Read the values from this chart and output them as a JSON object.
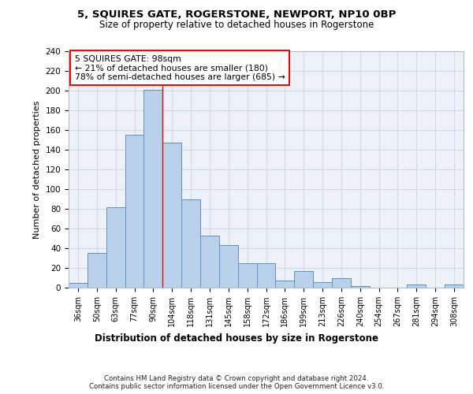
{
  "title1": "5, SQUIRES GATE, ROGERSTONE, NEWPORT, NP10 0BP",
  "title2": "Size of property relative to detached houses in Rogerstone",
  "xlabel": "Distribution of detached houses by size in Rogerstone",
  "ylabel": "Number of detached properties",
  "categories": [
    "36sqm",
    "50sqm",
    "63sqm",
    "77sqm",
    "90sqm",
    "104sqm",
    "118sqm",
    "131sqm",
    "145sqm",
    "158sqm",
    "172sqm",
    "186sqm",
    "199sqm",
    "213sqm",
    "226sqm",
    "240sqm",
    "254sqm",
    "267sqm",
    "281sqm",
    "294sqm",
    "308sqm"
  ],
  "values": [
    5,
    35,
    82,
    155,
    201,
    147,
    90,
    53,
    43,
    25,
    25,
    7,
    17,
    6,
    10,
    2,
    0,
    0,
    3,
    0,
    3
  ],
  "bar_color": "#b8d0ea",
  "bar_edge_color": "#6090c0",
  "grid_color": "#d0d8e8",
  "vline_x": 4.5,
  "vline_color": "red",
  "annotation_text": "5 SQUIRES GATE: 98sqm\n← 21% of detached houses are smaller (180)\n78% of semi-detached houses are larger (685) →",
  "annotation_box_color": "white",
  "annotation_box_edge_color": "red",
  "footer1": "Contains HM Land Registry data © Crown copyright and database right 2024.",
  "footer2": "Contains public sector information licensed under the Open Government Licence v3.0.",
  "ylim": [
    0,
    240
  ],
  "yticks": [
    0,
    20,
    40,
    60,
    80,
    100,
    120,
    140,
    160,
    180,
    200,
    220,
    240
  ],
  "bg_color": "#eef2f8"
}
